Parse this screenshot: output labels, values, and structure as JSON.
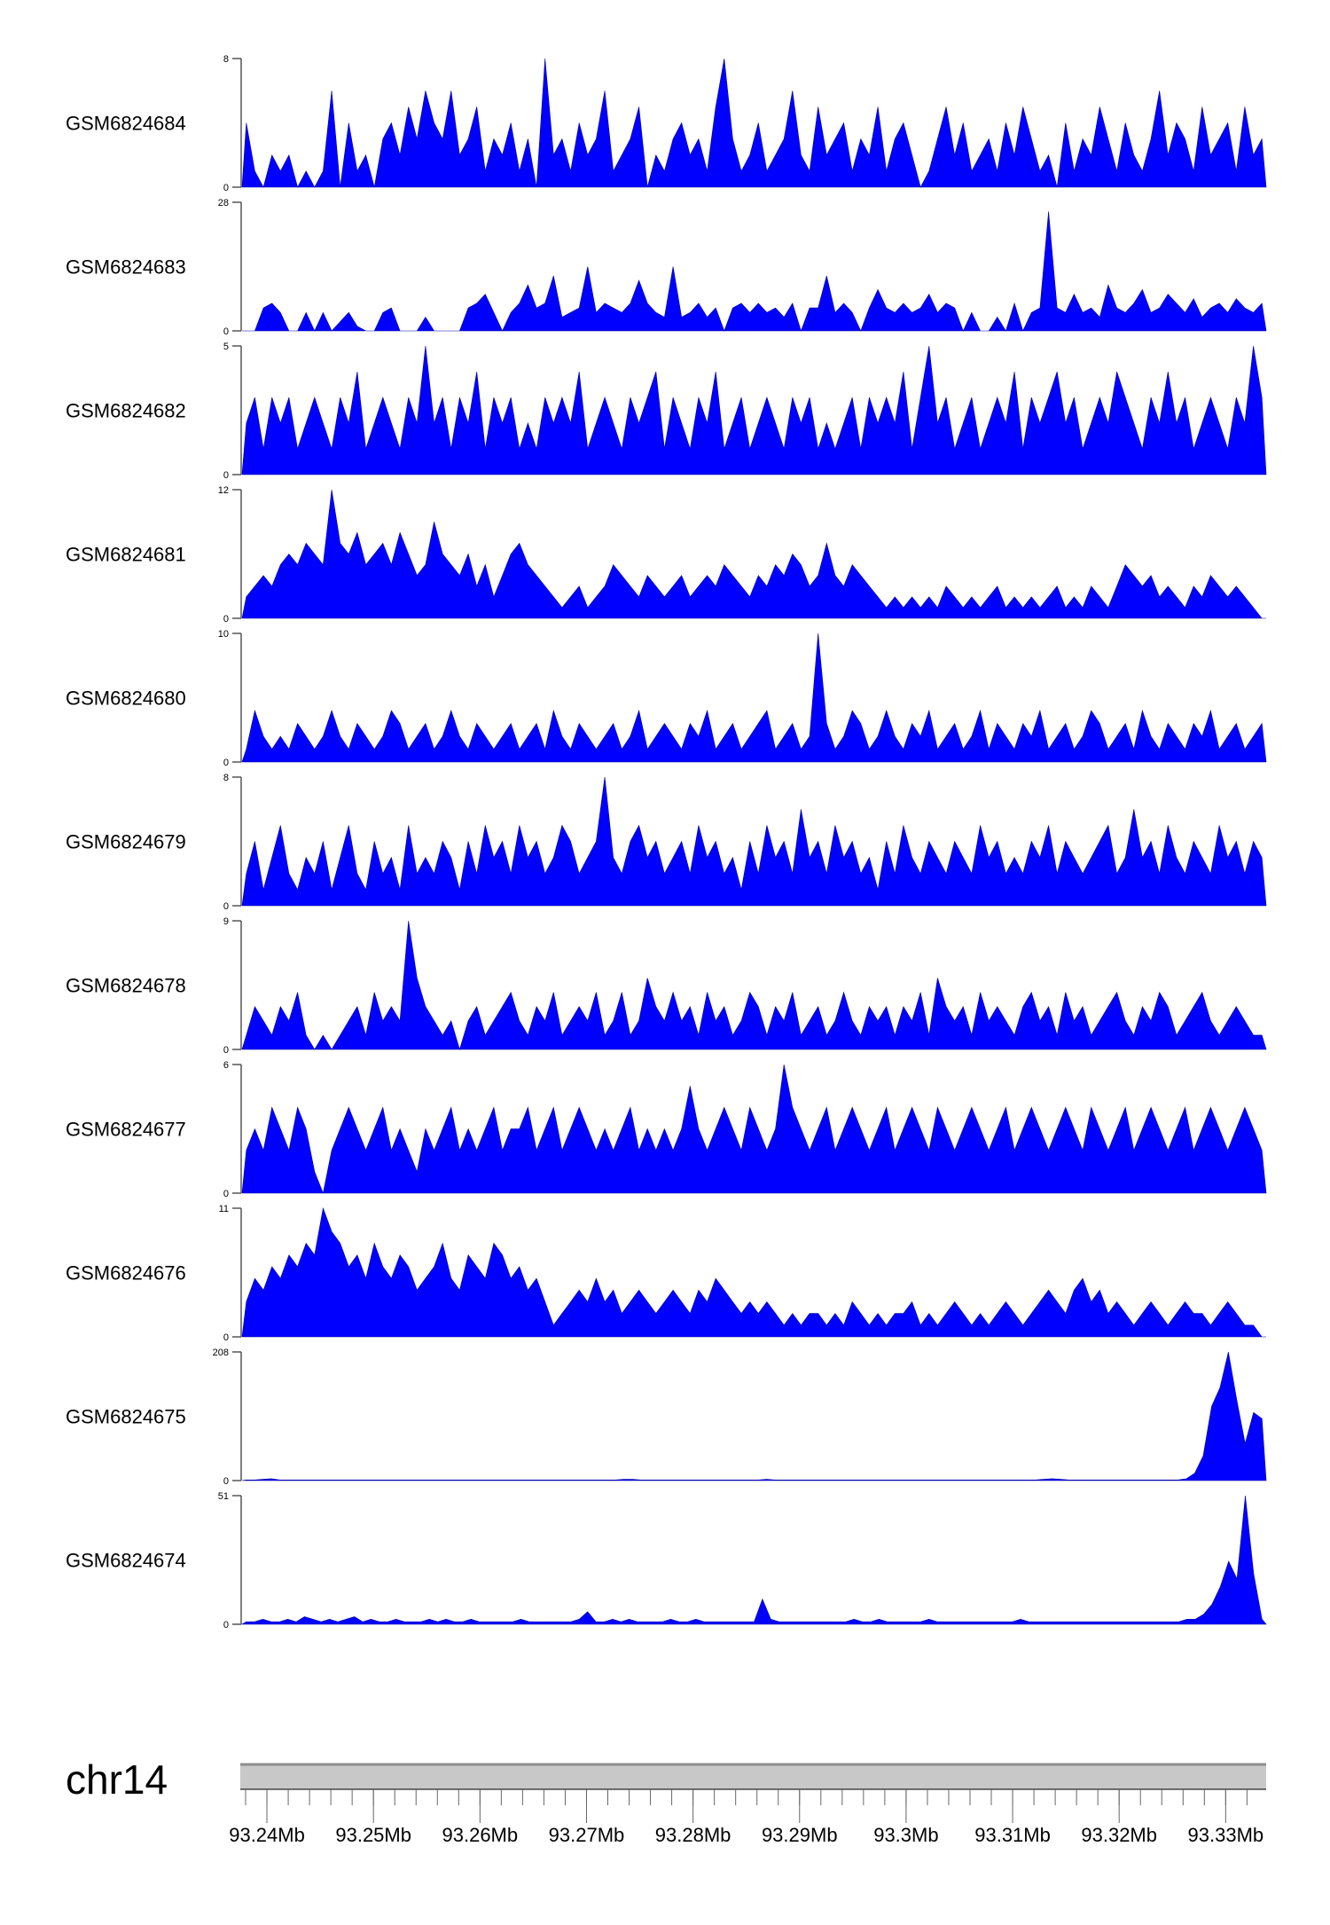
{
  "chart_data": {
    "type": "area",
    "title": "",
    "fill_color": "#0000FF",
    "chromosome": "chr14",
    "xlim_mb": [
      93.2375,
      93.3338
    ],
    "x_ticks": [
      "93.24Mb",
      "93.25Mb",
      "93.26Mb",
      "93.27Mb",
      "93.28Mb",
      "93.29Mb",
      "93.3Mb",
      "93.31Mb",
      "93.32Mb",
      "93.33Mb"
    ],
    "tracks": [
      {
        "name": "GSM6824684",
        "ylim": [
          0,
          8
        ],
        "y_tick_labels": [
          "8",
          "0"
        ],
        "values": [
          4,
          1,
          0,
          2,
          1,
          2,
          0,
          1,
          0,
          1,
          6,
          0,
          4,
          1,
          2,
          0,
          3,
          4,
          2,
          5,
          3,
          6,
          4,
          3,
          6,
          2,
          3,
          5,
          1,
          3,
          2,
          4,
          1,
          3,
          0,
          8,
          2,
          3,
          1,
          4,
          2,
          3,
          6,
          1,
          2,
          3,
          5,
          0,
          2,
          1,
          3,
          4,
          2,
          3,
          1,
          5,
          8,
          3,
          1,
          2,
          4,
          1,
          2,
          3,
          6,
          2,
          1,
          5,
          2,
          3,
          4,
          1,
          3,
          2,
          5,
          1,
          3,
          4,
          2,
          0,
          1,
          3,
          5,
          2,
          4,
          1,
          2,
          3,
          1,
          4,
          2,
          5,
          3,
          1,
          2,
          0,
          4,
          1,
          3,
          2,
          5,
          3,
          1,
          4,
          2,
          1,
          3,
          6,
          2,
          4,
          3,
          1,
          5,
          2,
          3,
          4,
          1,
          5,
          2,
          3
        ]
      },
      {
        "name": "GSM6824683",
        "ylim": [
          0,
          28
        ],
        "y_tick_labels": [
          "28",
          "0"
        ],
        "values": [
          0,
          0,
          5,
          6,
          4,
          0,
          0,
          4,
          0,
          4,
          0,
          2,
          4,
          1,
          0,
          0,
          4,
          5,
          0,
          0,
          0,
          3,
          0,
          0,
          0,
          0,
          5,
          6,
          8,
          4,
          0,
          4,
          6,
          10,
          5,
          6,
          12,
          3,
          4,
          5,
          14,
          4,
          6,
          5,
          4,
          6,
          11,
          6,
          4,
          3,
          14,
          3,
          4,
          6,
          3,
          5,
          0,
          5,
          6,
          4,
          6,
          4,
          5,
          3,
          6,
          0,
          5,
          5,
          12,
          4,
          6,
          4,
          0,
          5,
          9,
          5,
          4,
          6,
          4,
          5,
          8,
          4,
          6,
          5,
          0,
          4,
          0,
          0,
          3,
          0,
          6,
          0,
          4,
          5,
          26,
          5,
          4,
          8,
          4,
          5,
          3,
          10,
          5,
          4,
          6,
          9,
          4,
          5,
          8,
          6,
          4,
          7,
          3,
          5,
          6,
          4,
          7,
          5,
          4,
          6
        ]
      },
      {
        "name": "GSM6824682",
        "ylim": [
          0,
          5
        ],
        "y_tick_labels": [
          "5",
          "0"
        ],
        "values": [
          2,
          3,
          1,
          3,
          2,
          3,
          1,
          2,
          3,
          2,
          1,
          3,
          2,
          4,
          1,
          2,
          3,
          2,
          1,
          3,
          2,
          5,
          2,
          3,
          1,
          3,
          2,
          4,
          1,
          3,
          2,
          3,
          1,
          2,
          1,
          3,
          2,
          3,
          2,
          4,
          1,
          2,
          3,
          2,
          1,
          3,
          2,
          3,
          4,
          1,
          3,
          2,
          1,
          3,
          2,
          4,
          1,
          2,
          3,
          1,
          2,
          3,
          2,
          1,
          3,
          2,
          3,
          1,
          2,
          1,
          2,
          3,
          1,
          3,
          2,
          3,
          2,
          4,
          1,
          3,
          5,
          2,
          3,
          1,
          2,
          3,
          1,
          2,
          3,
          2,
          4,
          1,
          3,
          2,
          3,
          4,
          2,
          3,
          1,
          2,
          3,
          2,
          4,
          3,
          2,
          1,
          3,
          2,
          4,
          2,
          3,
          1,
          2,
          3,
          2,
          1,
          3,
          2,
          5,
          3
        ]
      },
      {
        "name": "GSM6824681",
        "ylim": [
          0,
          12
        ],
        "y_tick_labels": [
          "12",
          "0"
        ],
        "values": [
          2,
          3,
          4,
          3,
          5,
          6,
          5,
          7,
          6,
          5,
          12,
          7,
          6,
          8,
          5,
          6,
          7,
          5,
          8,
          6,
          4,
          5,
          9,
          6,
          5,
          4,
          6,
          3,
          5,
          2,
          4,
          6,
          7,
          5,
          4,
          3,
          2,
          1,
          2,
          3,
          1,
          2,
          3,
          5,
          4,
          3,
          2,
          4,
          3,
          2,
          3,
          4,
          2,
          3,
          4,
          3,
          5,
          4,
          3,
          2,
          4,
          3,
          5,
          4,
          6,
          5,
          3,
          4,
          7,
          4,
          3,
          5,
          4,
          3,
          2,
          1,
          2,
          1,
          2,
          1,
          2,
          1,
          3,
          2,
          1,
          2,
          1,
          2,
          3,
          1,
          2,
          1,
          2,
          1,
          2,
          3,
          1,
          2,
          1,
          3,
          2,
          1,
          3,
          5,
          4,
          3,
          4,
          2,
          3,
          2,
          1,
          3,
          2,
          4,
          3,
          2,
          3,
          2,
          1,
          0
        ]
      },
      {
        "name": "GSM6824680",
        "ylim": [
          0,
          10
        ],
        "y_tick_labels": [
          "10",
          "0"
        ],
        "values": [
          1,
          4,
          2,
          1,
          2,
          1,
          3,
          2,
          1,
          2,
          4,
          2,
          1,
          3,
          2,
          1,
          2,
          4,
          3,
          1,
          2,
          3,
          1,
          2,
          4,
          2,
          1,
          3,
          2,
          1,
          2,
          3,
          1,
          2,
          3,
          1,
          4,
          2,
          1,
          3,
          2,
          1,
          2,
          3,
          1,
          2,
          4,
          1,
          2,
          3,
          2,
          1,
          3,
          2,
          4,
          1,
          2,
          3,
          1,
          2,
          3,
          4,
          1,
          2,
          3,
          1,
          2,
          10,
          3,
          1,
          2,
          4,
          3,
          1,
          2,
          4,
          2,
          1,
          3,
          2,
          4,
          1,
          2,
          3,
          1,
          2,
          4,
          1,
          3,
          2,
          1,
          3,
          2,
          4,
          1,
          2,
          3,
          1,
          2,
          4,
          3,
          1,
          2,
          3,
          1,
          4,
          2,
          1,
          3,
          2,
          1,
          3,
          2,
          4,
          1,
          2,
          3,
          1,
          2,
          3
        ]
      },
      {
        "name": "GSM6824679",
        "ylim": [
          0,
          8
        ],
        "y_tick_labels": [
          "8",
          "0"
        ],
        "values": [
          2,
          4,
          1,
          3,
          5,
          2,
          1,
          3,
          2,
          4,
          1,
          3,
          5,
          2,
          1,
          4,
          2,
          3,
          1,
          5,
          2,
          3,
          2,
          4,
          3,
          1,
          4,
          2,
          5,
          3,
          4,
          2,
          5,
          3,
          4,
          2,
          3,
          5,
          4,
          2,
          3,
          4,
          8,
          3,
          2,
          4,
          5,
          3,
          4,
          2,
          3,
          4,
          2,
          5,
          3,
          4,
          2,
          3,
          1,
          4,
          2,
          5,
          3,
          4,
          2,
          6,
          3,
          4,
          2,
          5,
          3,
          4,
          2,
          3,
          1,
          4,
          2,
          5,
          3,
          2,
          4,
          3,
          2,
          4,
          3,
          2,
          5,
          3,
          4,
          2,
          3,
          2,
          4,
          3,
          5,
          2,
          4,
          3,
          2,
          3,
          4,
          5,
          2,
          3,
          6,
          3,
          4,
          2,
          5,
          3,
          2,
          4,
          3,
          2,
          5,
          3,
          4,
          2,
          4,
          3
        ]
      },
      {
        "name": "GSM6824678",
        "ylim": [
          0,
          9
        ],
        "y_tick_labels": [
          "9",
          "0"
        ],
        "values": [
          1,
          3,
          2,
          1,
          3,
          2,
          4,
          1,
          0,
          1,
          0,
          1,
          2,
          3,
          1,
          4,
          2,
          3,
          2,
          9,
          5,
          3,
          2,
          1,
          2,
          0,
          2,
          3,
          1,
          2,
          3,
          4,
          2,
          1,
          3,
          2,
          4,
          1,
          2,
          3,
          2,
          4,
          1,
          2,
          4,
          1,
          2,
          5,
          3,
          2,
          4,
          2,
          3,
          1,
          4,
          2,
          3,
          1,
          2,
          4,
          3,
          1,
          3,
          2,
          4,
          1,
          2,
          3,
          1,
          2,
          4,
          2,
          1,
          3,
          2,
          3,
          1,
          3,
          2,
          4,
          1,
          5,
          3,
          2,
          3,
          1,
          4,
          2,
          3,
          2,
          1,
          3,
          4,
          2,
          3,
          1,
          4,
          2,
          3,
          1,
          2,
          3,
          4,
          2,
          1,
          3,
          2,
          4,
          3,
          1,
          2,
          3,
          4,
          2,
          1,
          2,
          3,
          2,
          1,
          1
        ]
      },
      {
        "name": "GSM6824677",
        "ylim": [
          0,
          6
        ],
        "y_tick_labels": [
          "6",
          "0"
        ],
        "values": [
          2,
          3,
          2,
          4,
          3,
          2,
          4,
          3,
          1,
          0,
          2,
          3,
          4,
          3,
          2,
          3,
          4,
          2,
          3,
          2,
          1,
          3,
          2,
          3,
          4,
          2,
          3,
          2,
          3,
          4,
          2,
          3,
          3,
          4,
          2,
          3,
          4,
          2,
          3,
          4,
          3,
          2,
          3,
          2,
          3,
          4,
          2,
          3,
          2,
          3,
          2,
          3,
          5,
          3,
          2,
          3,
          4,
          3,
          2,
          4,
          3,
          2,
          3,
          6,
          4,
          3,
          2,
          3,
          4,
          2,
          3,
          4,
          3,
          2,
          3,
          4,
          2,
          3,
          4,
          3,
          2,
          4,
          3,
          2,
          3,
          4,
          3,
          2,
          3,
          4,
          2,
          3,
          4,
          3,
          2,
          3,
          4,
          3,
          2,
          4,
          3,
          2,
          3,
          4,
          2,
          3,
          4,
          3,
          2,
          3,
          4,
          2,
          3,
          4,
          3,
          2,
          3,
          4,
          3,
          2
        ]
      },
      {
        "name": "GSM6824676",
        "ylim": [
          0,
          11
        ],
        "y_tick_labels": [
          "11",
          "0"
        ],
        "values": [
          3,
          5,
          4,
          6,
          5,
          7,
          6,
          8,
          7,
          11,
          9,
          8,
          6,
          7,
          5,
          8,
          6,
          5,
          7,
          6,
          4,
          5,
          6,
          8,
          5,
          4,
          7,
          6,
          5,
          8,
          7,
          5,
          6,
          4,
          5,
          3,
          1,
          2,
          3,
          4,
          3,
          5,
          3,
          4,
          2,
          3,
          4,
          3,
          2,
          3,
          4,
          3,
          2,
          4,
          3,
          5,
          4,
          3,
          2,
          3,
          2,
          3,
          2,
          1,
          2,
          1,
          2,
          2,
          1,
          2,
          1,
          3,
          2,
          1,
          2,
          1,
          2,
          2,
          3,
          1,
          2,
          1,
          2,
          3,
          2,
          1,
          2,
          1,
          2,
          3,
          2,
          1,
          2,
          3,
          4,
          3,
          2,
          4,
          5,
          3,
          4,
          2,
          3,
          2,
          1,
          2,
          3,
          2,
          1,
          2,
          3,
          2,
          2,
          1,
          2,
          3,
          2,
          1,
          1,
          0
        ]
      },
      {
        "name": "GSM6824675",
        "ylim": [
          0,
          208
        ],
        "y_tick_labels": [
          "208",
          "0"
        ],
        "values": [
          1,
          1,
          2,
          3,
          1,
          1,
          1,
          1,
          1,
          1,
          1,
          1,
          1,
          1,
          1,
          1,
          1,
          1,
          1,
          1,
          1,
          1,
          1,
          1,
          1,
          1,
          1,
          1,
          1,
          1,
          1,
          1,
          1,
          1,
          1,
          1,
          1,
          1,
          1,
          1,
          1,
          1,
          1,
          1,
          1,
          2,
          2,
          1,
          1,
          1,
          1,
          1,
          1,
          1,
          1,
          1,
          1,
          1,
          1,
          1,
          1,
          1,
          2,
          1,
          1,
          1,
          1,
          1,
          1,
          1,
          1,
          1,
          1,
          1,
          1,
          1,
          1,
          1,
          1,
          1,
          1,
          1,
          1,
          1,
          1,
          1,
          1,
          1,
          1,
          1,
          1,
          1,
          1,
          1,
          1,
          2,
          3,
          2,
          1,
          1,
          1,
          1,
          1,
          1,
          1,
          1,
          1,
          1,
          1,
          1,
          1,
          1,
          3,
          12,
          40,
          120,
          150,
          208,
          130,
          60,
          110,
          100
        ]
      },
      {
        "name": "GSM6824674",
        "ylim": [
          0,
          51
        ],
        "y_tick_labels": [
          "51",
          "0"
        ],
        "values": [
          1,
          1,
          2,
          1,
          1,
          2,
          1,
          3,
          2,
          1,
          2,
          1,
          2,
          3,
          1,
          2,
          1,
          1,
          2,
          1,
          1,
          1,
          2,
          1,
          2,
          1,
          1,
          2,
          1,
          1,
          1,
          1,
          1,
          2,
          1,
          1,
          1,
          1,
          1,
          1,
          2,
          5,
          1,
          1,
          2,
          1,
          2,
          1,
          1,
          1,
          1,
          2,
          1,
          1,
          2,
          1,
          1,
          1,
          1,
          1,
          1,
          1,
          10,
          2,
          1,
          1,
          1,
          1,
          1,
          1,
          1,
          1,
          1,
          2,
          1,
          1,
          2,
          1,
          1,
          1,
          1,
          1,
          2,
          1,
          1,
          1,
          1,
          1,
          1,
          1,
          1,
          1,
          1,
          2,
          1,
          1,
          1,
          1,
          1,
          1,
          1,
          1,
          1,
          1,
          1,
          1,
          1,
          1,
          1,
          1,
          1,
          1,
          1,
          2,
          2,
          4,
          8,
          15,
          25,
          18,
          51,
          20,
          2
        ]
      }
    ]
  }
}
